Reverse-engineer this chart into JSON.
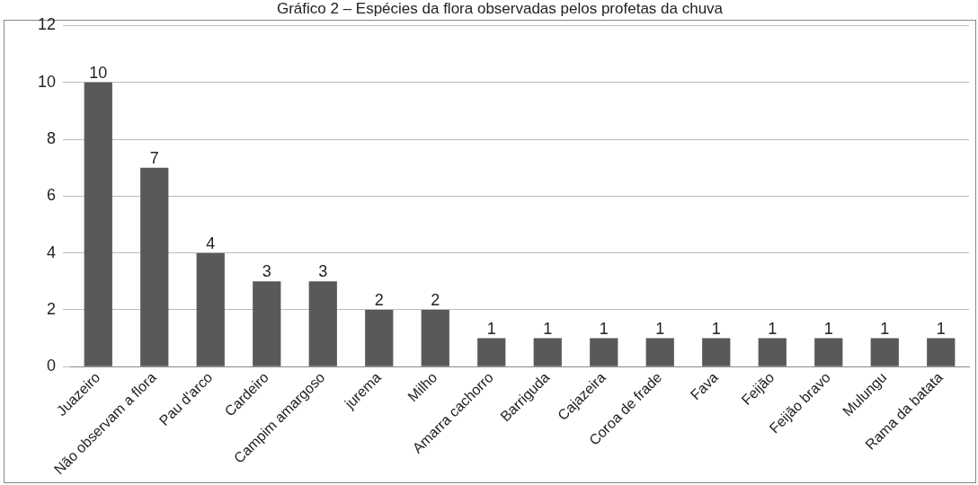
{
  "chart_data": {
    "type": "bar",
    "title": "Gráfico 2 – Espécies da flora observadas pelos profetas da chuva",
    "categories": [
      "Juazeiro",
      "Não observam a flora",
      "Pau d'arco",
      "Cardeiro",
      "Campim amargoso",
      "jurema",
      "Milho",
      "Amarra cachorro",
      "Barriguda",
      "Cajazeira",
      "Coroa de frade",
      "Fava",
      "Feijão",
      "Feijão bravo",
      "Mulungu",
      "Rama da batata"
    ],
    "values": [
      10,
      7,
      4,
      3,
      3,
      2,
      2,
      1,
      1,
      1,
      1,
      1,
      1,
      1,
      1,
      1
    ],
    "color": "#595959",
    "ylim": [
      0,
      12
    ],
    "yticks": [
      0,
      2,
      4,
      6,
      8,
      10,
      12
    ],
    "grid": "y",
    "data_labels": true
  }
}
